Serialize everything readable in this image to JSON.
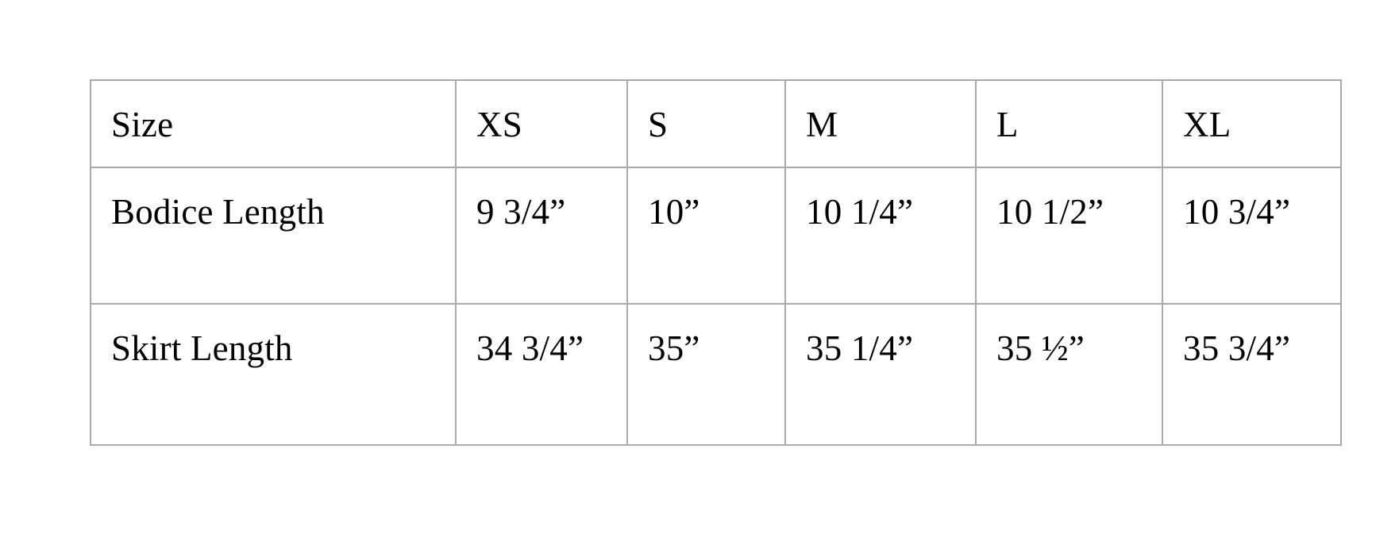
{
  "size_chart": {
    "columns": [
      "Size",
      "XS",
      "S",
      "M",
      "L",
      "XL"
    ],
    "rows": [
      {
        "label": "Bodice Length",
        "values": [
          "9 3/4”",
          "10”",
          "10 1/4”",
          "10 1/2”",
          "10 3/4”"
        ]
      },
      {
        "label": "Skirt Length",
        "values": [
          "34 3/4”",
          "35”",
          "35 1/4”",
          "35 ½”",
          "35 3/4”"
        ]
      }
    ],
    "border_color": "#a9a9a9",
    "text_color": "#000000",
    "background_color": "#ffffff"
  }
}
